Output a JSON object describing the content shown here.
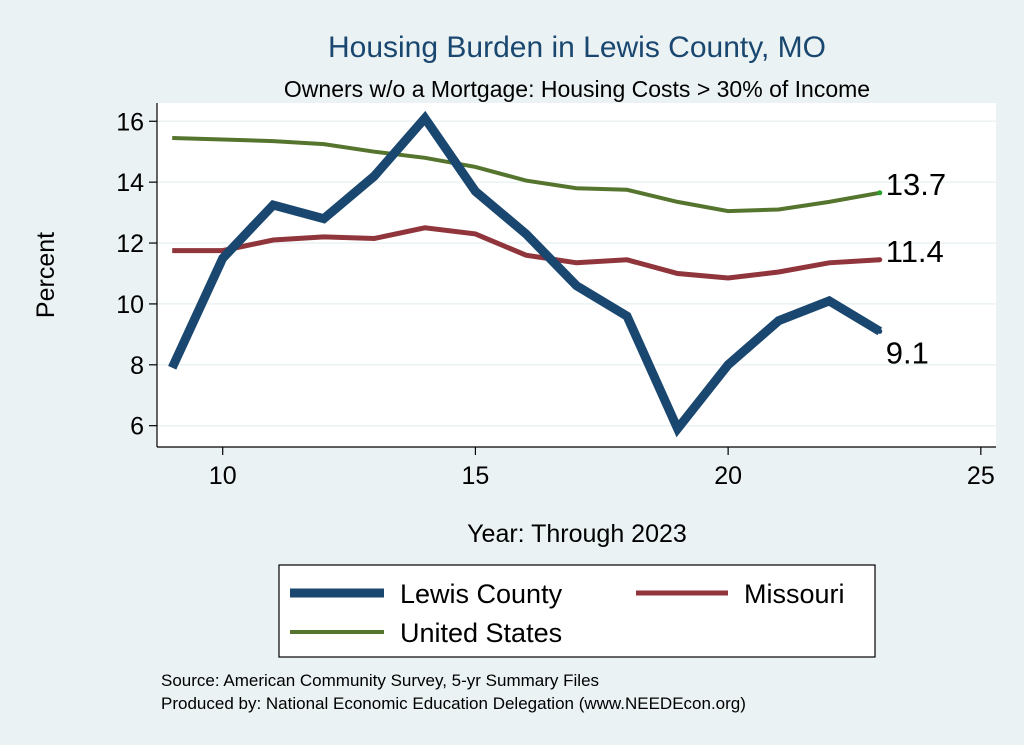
{
  "chart_data": {
    "type": "line",
    "title": "Housing Burden in Lewis County, MO",
    "subtitle": "Owners w/o a Mortgage: Housing Costs > 30% of Income",
    "xlabel": "Year: Through 2023",
    "ylabel": "Percent",
    "xlim": [
      8.7,
      25.3
    ],
    "ylim": [
      5.3,
      16.6
    ],
    "xticks": [
      10,
      15,
      20,
      25
    ],
    "yticks": [
      6,
      8,
      10,
      12,
      14,
      16
    ],
    "grid": true,
    "legend_position": "bottom",
    "x": [
      9,
      10,
      11,
      12,
      13,
      14,
      15,
      16,
      17,
      18,
      19,
      20,
      21,
      22,
      23
    ],
    "series": [
      {
        "name": "Lewis County",
        "color": "#1a476f",
        "values": [
          7.9,
          11.5,
          13.25,
          12.8,
          14.2,
          16.1,
          13.7,
          12.3,
          10.6,
          9.6,
          5.9,
          8.0,
          9.45,
          10.1,
          9.1
        ],
        "end_label": "9.1"
      },
      {
        "name": "Missouri",
        "color": "#90353b",
        "values": [
          11.75,
          11.75,
          12.1,
          12.2,
          12.15,
          12.5,
          12.3,
          11.6,
          11.35,
          11.45,
          11.0,
          10.85,
          11.05,
          11.35,
          11.45
        ],
        "end_label": "11.4"
      },
      {
        "name": "United States",
        "color": "#55752f",
        "values": [
          15.45,
          15.4,
          15.35,
          15.25,
          15.0,
          14.8,
          14.5,
          14.05,
          13.8,
          13.75,
          13.35,
          13.05,
          13.1,
          13.35,
          13.65
        ],
        "end_label": "13.7"
      }
    ],
    "notes": [
      "Source: American Community Survey, 5-yr Summary Files",
      "Produced by: National Economic Education Delegation (www.NEEDEcon.org)"
    ]
  }
}
